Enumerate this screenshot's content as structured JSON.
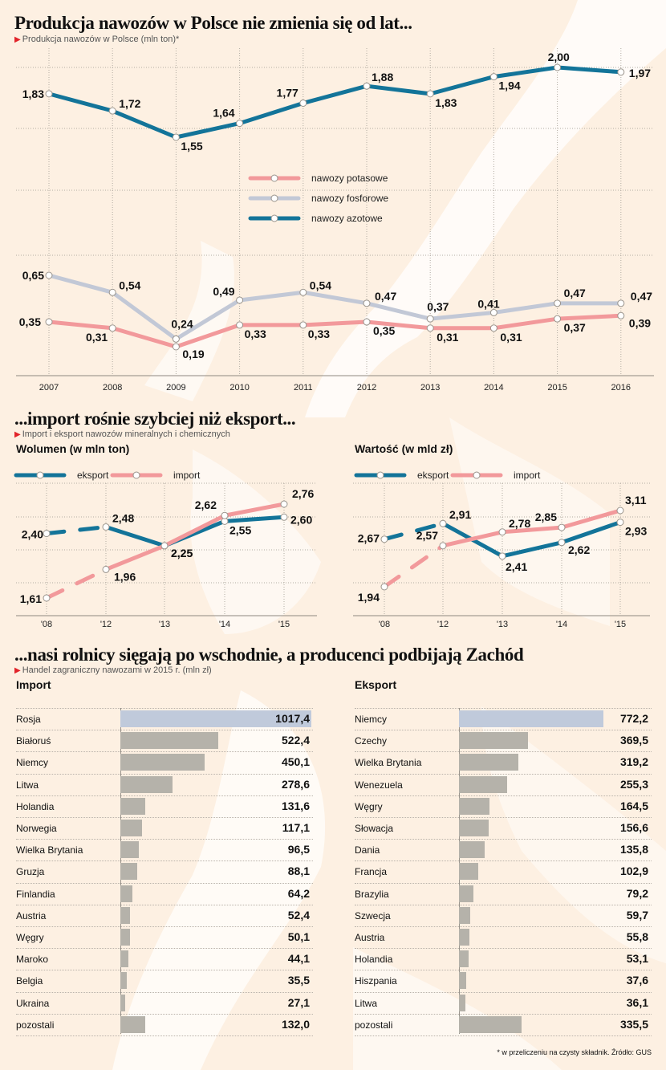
{
  "section1": {
    "headline": "Produkcja nawozów w Polsce nie zmienia się od lat...",
    "subtitle": "Produkcja nawozów w Polsce (mln ton)*"
  },
  "section2": {
    "headline": "...import rośnie szybciej niż eksport...",
    "subtitle": "Import i eksport nawozów mineralnych i chemicznych",
    "left_title": "Wolumen (w mln ton)",
    "right_title": "Wartość (w mld zł)"
  },
  "section3": {
    "headline": "...nasi rolnicy sięgają po wschodnie, a producenci podbijają Zachód",
    "subtitle": "Handel zagraniczny nawozami w 2015 r. (mln zł)",
    "import_title": "Import",
    "export_title": "Eksport"
  },
  "footnote": "* w przeliczeniu na czysty składnik. Źródło: GUS",
  "colors": {
    "azotowe": "#137499",
    "fosforowe": "#c2c8d6",
    "potasowe": "#f2999b",
    "eksport": "#137499",
    "import": "#f2999b",
    "bar_top": "#c0cadb",
    "bar": "#b5b2aa"
  },
  "chart_data": [
    {
      "id": "production",
      "type": "line",
      "title": "Produkcja nawozów w Polsce (mln ton)*",
      "x": [
        "2007",
        "2008",
        "2009",
        "2010",
        "2011",
        "2012",
        "2013",
        "2014",
        "2015",
        "2016"
      ],
      "series": [
        {
          "key": "azotowe",
          "name": "nawozy azotowe",
          "values": [
            1.83,
            1.72,
            1.55,
            1.64,
            1.77,
            1.88,
            1.83,
            1.94,
            2.0,
            1.97
          ],
          "labels": [
            "1,83",
            "1,72",
            "1,55",
            "1,64",
            "1,77",
            "1,88",
            "1,83",
            "1,94",
            "2,00",
            "1,97"
          ]
        },
        {
          "key": "fosforowe",
          "name": "nawozy fosforowe",
          "values": [
            0.65,
            0.54,
            0.24,
            0.49,
            0.54,
            0.47,
            0.37,
            0.41,
            0.47,
            0.47
          ],
          "labels": [
            "0,65",
            "0,54",
            "0,24",
            "0,49",
            "0,54",
            "0,47",
            "0,37",
            "0,41",
            "0,47",
            "0,47"
          ]
        },
        {
          "key": "potasowe",
          "name": "nawozy potasowe",
          "values": [
            0.35,
            0.31,
            0.19,
            0.33,
            0.33,
            0.35,
            0.31,
            0.31,
            0.37,
            0.39
          ],
          "labels": [
            "0,35",
            "0,31",
            "0,19",
            "0,33",
            "0,33",
            "0,35",
            "0,31",
            "0,31",
            "0,37",
            "0,39"
          ]
        }
      ],
      "legend": [
        "nawozy potasowe",
        "nawozy fosforowe",
        "nawozy azotowe"
      ],
      "legend_position": "center",
      "grid": true
    },
    {
      "id": "volume",
      "type": "line",
      "title": "Wolumen (w mln ton)",
      "x": [
        "'08",
        "'12",
        "'13",
        "'14",
        "'15"
      ],
      "note": "first segment dashed (gap 2008-2012)",
      "series": [
        {
          "key": "eksport",
          "name": "eksport",
          "values": [
            2.4,
            2.48,
            2.25,
            2.55,
            2.6
          ],
          "labels": [
            "2,40",
            "2,48",
            "2,25",
            "2,55",
            "2,60"
          ]
        },
        {
          "key": "import",
          "name": "import",
          "values": [
            1.61,
            1.96,
            2.25,
            2.62,
            2.76
          ],
          "labels": [
            "1,61",
            "1,96",
            "2,25",
            "2,62",
            "2,76"
          ]
        }
      ],
      "legend": [
        "eksport",
        "import"
      ],
      "legend_position": "top-left",
      "grid": true
    },
    {
      "id": "value",
      "type": "line",
      "title": "Wartość (w mld zł)",
      "x": [
        "'08",
        "'12",
        "'13",
        "'14",
        "'15"
      ],
      "note": "first segment dashed (gap 2008-2012)",
      "series": [
        {
          "key": "eksport",
          "name": "eksport",
          "values": [
            2.67,
            2.91,
            2.41,
            2.62,
            2.93
          ],
          "labels": [
            "2,67",
            "2,91",
            "2,41",
            "2,62",
            "2,93"
          ]
        },
        {
          "key": "import",
          "name": "import",
          "values": [
            1.94,
            2.57,
            2.78,
            2.85,
            3.11
          ],
          "labels": [
            "1,94",
            "2,57",
            "2,78",
            "2,85",
            "3,11"
          ]
        }
      ],
      "legend": [
        "eksport",
        "import"
      ],
      "legend_position": "top-left",
      "grid": true
    },
    {
      "id": "import_bars",
      "type": "bar",
      "title": "Import",
      "unit": "mln zł",
      "categories": [
        "Rosja",
        "Białoruś",
        "Niemcy",
        "Litwa",
        "Holandia",
        "Norwegia",
        "Wielka Brytania",
        "Gruzja",
        "Finlandia",
        "Austria",
        "Węgry",
        "Maroko",
        "Belgia",
        "Ukraina",
        "pozostali"
      ],
      "values": [
        1017.4,
        522.4,
        450.1,
        278.6,
        131.6,
        117.1,
        96.5,
        88.1,
        64.2,
        52.4,
        50.1,
        44.1,
        35.5,
        27.1,
        132.0
      ],
      "labels": [
        "1017,4",
        "522,4",
        "450,1",
        "278,6",
        "131,6",
        "117,1",
        "96,5",
        "88,1",
        "64,2",
        "52,4",
        "50,1",
        "44,1",
        "35,5",
        "27,1",
        "132,0"
      ]
    },
    {
      "id": "export_bars",
      "type": "bar",
      "title": "Eksport",
      "unit": "mln zł",
      "categories": [
        "Niemcy",
        "Czechy",
        "Wielka Brytania",
        "Wenezuela",
        "Węgry",
        "Słowacja",
        "Dania",
        "Francja",
        "Brazylia",
        "Szwecja",
        "Austria",
        "Holandia",
        "Hiszpania",
        "Litwa",
        "pozostali"
      ],
      "values": [
        772.2,
        369.5,
        319.2,
        255.3,
        164.5,
        156.6,
        135.8,
        102.9,
        79.2,
        59.7,
        55.8,
        53.1,
        37.6,
        36.1,
        335.5
      ],
      "labels": [
        "772,2",
        "369,5",
        "319,2",
        "255,3",
        "164,5",
        "156,6",
        "135,8",
        "102,9",
        "79,2",
        "59,7",
        "55,8",
        "53,1",
        "37,6",
        "36,1",
        "335,5"
      ]
    }
  ]
}
